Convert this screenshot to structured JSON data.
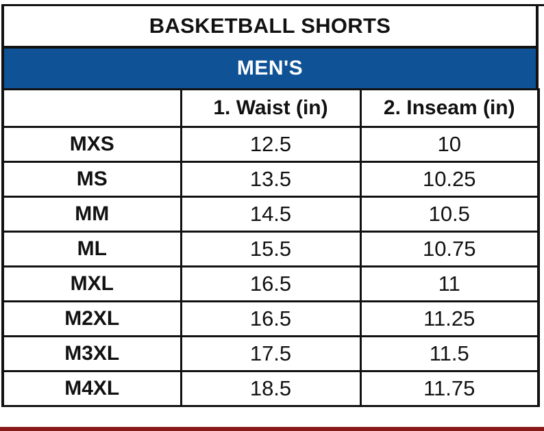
{
  "title": "BASKETBALL SHORTS",
  "section": "MEN'S",
  "columns": [
    "",
    "1. Waist (in)",
    "2. Inseam (in)"
  ],
  "rows": [
    {
      "size": "MXS",
      "waist": "12.5",
      "inseam": "10"
    },
    {
      "size": "MS",
      "waist": "13.5",
      "inseam": "10.25"
    },
    {
      "size": "MM",
      "waist": "14.5",
      "inseam": "10.5"
    },
    {
      "size": "ML",
      "waist": "15.5",
      "inseam": "10.75"
    },
    {
      "size": "MXL",
      "waist": "16.5",
      "inseam": "11"
    },
    {
      "size": "M2XL",
      "waist": "16.5",
      "inseam": "11.25"
    },
    {
      "size": "M3XL",
      "waist": "17.5",
      "inseam": "11.5"
    },
    {
      "size": "M4XL",
      "waist": "18.5",
      "inseam": "11.75"
    }
  ],
  "colors": {
    "section_bg": "#0f5296",
    "section_text": "#ffffff",
    "border": "#111111",
    "bottom_accent": "#8a1a1a"
  }
}
